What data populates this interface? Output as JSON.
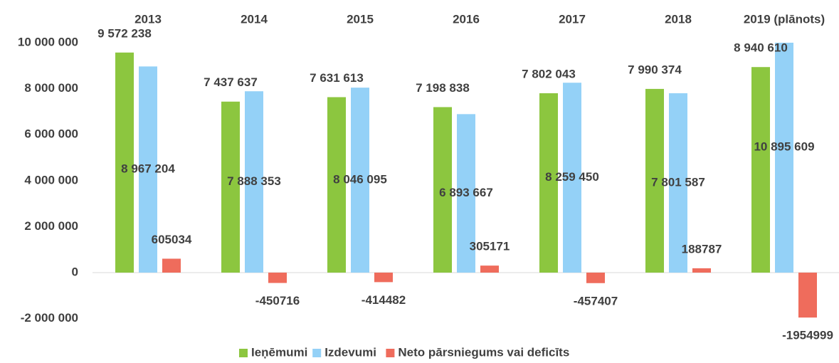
{
  "chart_data": {
    "type": "bar",
    "categories": [
      "2013",
      "2014",
      "2015",
      "2016",
      "2017",
      "2018",
      "2019 (plānots)"
    ],
    "series": [
      {
        "name": "Ieņēmumi",
        "color": "#8cc63f",
        "values": [
          9572238,
          7437637,
          7631613,
          7198838,
          7802043,
          7990374,
          8940610
        ],
        "value_labels": [
          "9 572 238",
          "7 437 637",
          "7 631 613",
          "7 198 838",
          "7 802 043",
          "7 990 374",
          "8 940 610"
        ]
      },
      {
        "name": "Izdevumi",
        "color": "#94d1f7",
        "values": [
          8967204,
          7888353,
          8046095,
          6893667,
          8259450,
          7801587,
          10895609
        ],
        "value_labels": [
          "8 967 204",
          "7 888 353",
          "8 046 095",
          "6 893 667",
          "8 259 450",
          "7 801 587",
          "10 895 609"
        ]
      },
      {
        "name": "Neto pārsniegums vai deficīts",
        "color": "#ef6c5c",
        "values": [
          605034,
          -450716,
          -414482,
          305171,
          -457407,
          188787,
          -1954999
        ]
      }
    ],
    "ylim": [
      -2000000,
      10000000
    ],
    "yticks": [
      {
        "value": -2000000,
        "label": "-2 000 000"
      },
      0,
      {
        "value": 2000000,
        "label": "2 000 000"
      },
      {
        "value": 4000000,
        "label": "4 000 000"
      },
      {
        "value": 6000000,
        "label": "6 000 000"
      },
      {
        "value": 8000000,
        "label": "8 000 000"
      },
      {
        "value": 10000000,
        "label": "10 000 000"
      }
    ],
    "grid": false,
    "legend": "bottom"
  }
}
